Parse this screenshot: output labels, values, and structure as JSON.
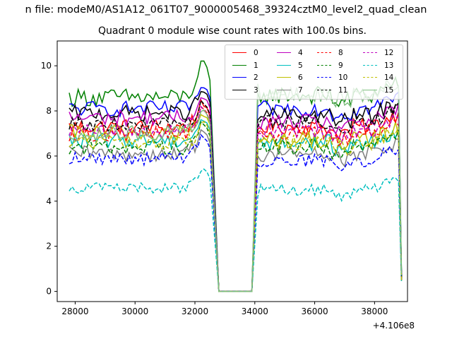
{
  "figure": {
    "suptitle": "n file: modeM0/AS1A12_061T07_9000005468_39324cztM0_level2_quad_clean",
    "title": "Quadrant 0 module wise count rates with 100.0s bins."
  },
  "chart_data": {
    "type": "line",
    "title": "Quadrant 0 module wise count rates with 100.0s bins.",
    "xlabel": "",
    "ylabel": "",
    "x_offset_label": "+4.106e8",
    "xlim": [
      27400,
      39100
    ],
    "ylim": [
      -0.45,
      11.1
    ],
    "x_ticks": [
      28000,
      30000,
      32000,
      34000,
      36000,
      38000
    ],
    "x_tick_labels": [
      "28000",
      "30000",
      "32000",
      "34000",
      "36000",
      "38000"
    ],
    "y_ticks": [
      0,
      2,
      4,
      6,
      8,
      10
    ],
    "y_tick_labels": [
      "0",
      "2",
      "4",
      "6",
      "8",
      "10"
    ],
    "grid": false,
    "legend_position": "top-right",
    "segments": {
      "seg1": {
        "x_start": 27800,
        "x_end": 32500,
        "step": 100
      },
      "gap_drop_x": 32800,
      "gap_rise_x": 33900,
      "seg2": {
        "x_start": 34100,
        "x_end": 38800,
        "step": 100
      },
      "end_x": 38900
    },
    "series": [
      {
        "name": "0",
        "color": "#ff0000",
        "dash": "solid",
        "level1": 7.3,
        "level2": 7.3,
        "amp": 0.35,
        "peak": 8.5,
        "start2": 7.2,
        "end": 0.6
      },
      {
        "name": "1",
        "color": "#008000",
        "dash": "solid",
        "level1": 8.6,
        "level2": 8.7,
        "amp": 0.4,
        "peak": 10.5,
        "start2": 8.8,
        "end": 0.8
      },
      {
        "name": "2",
        "color": "#0000ff",
        "dash": "solid",
        "level1": 8.1,
        "level2": 8.1,
        "amp": 0.35,
        "peak": 9.3,
        "start2": 8.2,
        "end": 0.7
      },
      {
        "name": "3",
        "color": "#000000",
        "dash": "solid",
        "level1": 7.9,
        "level2": 7.8,
        "amp": 0.35,
        "peak": 9.1,
        "start2": 7.6,
        "end": 0.7
      },
      {
        "name": "4",
        "color": "#bf00bf",
        "dash": "solid",
        "level1": 7.7,
        "level2": 7.5,
        "amp": 0.35,
        "peak": 8.8,
        "start2": 7.4,
        "end": 0.6
      },
      {
        "name": "5",
        "color": "#00bfbf",
        "dash": "solid",
        "level1": 6.7,
        "level2": 6.6,
        "amp": 0.35,
        "peak": 7.8,
        "start2": 6.5,
        "end": 0.5
      },
      {
        "name": "6",
        "color": "#bfbf00",
        "dash": "solid",
        "level1": 7.0,
        "level2": 6.7,
        "amp": 0.4,
        "peak": 8.0,
        "start2": 6.8,
        "end": 0.5
      },
      {
        "name": "7",
        "color": "#808080",
        "dash": "solid",
        "level1": 6.1,
        "level2": 6.1,
        "amp": 0.35,
        "peak": 7.3,
        "start2": 6.0,
        "end": 0.5
      },
      {
        "name": "8",
        "color": "#ff0000",
        "dash": "dashed",
        "level1": 7.0,
        "level2": 7.0,
        "amp": 0.35,
        "peak": 8.3,
        "start2": 7.0,
        "end": 0.5
      },
      {
        "name": "9",
        "color": "#008000",
        "dash": "dashed",
        "level1": 6.4,
        "level2": 6.4,
        "amp": 0.35,
        "peak": 7.6,
        "start2": 6.3,
        "end": 0.5
      },
      {
        "name": "10",
        "color": "#0000ff",
        "dash": "dashed",
        "level1": 5.9,
        "level2": 5.8,
        "amp": 0.3,
        "peak": 7.0,
        "start2": 5.6,
        "end": 0.5
      },
      {
        "name": "11",
        "color": "#000000",
        "dash": "dashed",
        "level1": 7.4,
        "level2": 7.5,
        "amp": 0.3,
        "peak": 8.5,
        "start2": 7.3,
        "end": 0.6
      },
      {
        "name": "12",
        "color": "#bf00bf",
        "dash": "dashed",
        "level1": 7.1,
        "level2": 7.1,
        "amp": 0.3,
        "peak": 8.2,
        "start2": 7.0,
        "end": 0.5
      },
      {
        "name": "13",
        "color": "#00bfbf",
        "dash": "dashed",
        "level1": 4.6,
        "level2": 4.5,
        "amp": 0.25,
        "peak": 5.6,
        "start2": 4.2,
        "end": 0.4
      },
      {
        "name": "14",
        "color": "#bfbf00",
        "dash": "dashed",
        "level1": 6.6,
        "level2": 6.6,
        "amp": 0.35,
        "peak": 7.7,
        "start2": 6.6,
        "end": 0.5
      },
      {
        "name": "15",
        "color": "#80bf80",
        "dash": "solid",
        "level1": 7.0,
        "level2": 8.7,
        "amp": 0.35,
        "peak": 8.2,
        "start2": 9.2,
        "end": 0.8
      }
    ]
  }
}
